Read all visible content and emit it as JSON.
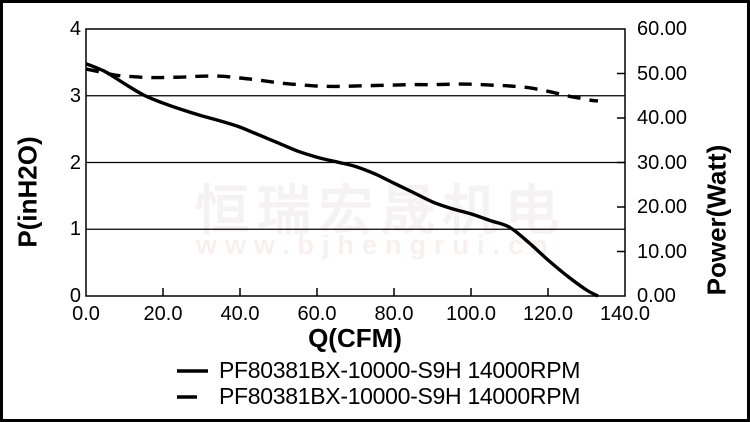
{
  "chart_data": {
    "type": "line",
    "xlabel": "Q(CFM)",
    "ylabel_left": "P(inH2O)",
    "ylabel_right": "Power(Watt)",
    "xlim": [
      0,
      140
    ],
    "ylim_left": [
      0,
      4
    ],
    "ylim_right": [
      0,
      60
    ],
    "grid": "horizontal-only",
    "gridlines_left_values": [
      1,
      2,
      3
    ],
    "x_ticks": [
      {
        "value": 0,
        "label": "0.0"
      },
      {
        "value": 20,
        "label": "20.0"
      },
      {
        "value": 40,
        "label": "40.0"
      },
      {
        "value": 60,
        "label": "60.0"
      },
      {
        "value": 80,
        "label": "80.0"
      },
      {
        "value": 100,
        "label": "100.0"
      },
      {
        "value": 120,
        "label": "120.0"
      },
      {
        "value": 140,
        "label": "140.0"
      }
    ],
    "y_left_ticks": [
      {
        "value": 0,
        "label": "0"
      },
      {
        "value": 1,
        "label": "1"
      },
      {
        "value": 2,
        "label": "2"
      },
      {
        "value": 3,
        "label": "3"
      },
      {
        "value": 4,
        "label": "4"
      }
    ],
    "y_right_ticks": [
      {
        "value": 0,
        "label": "0.00"
      },
      {
        "value": 10,
        "label": "10.00"
      },
      {
        "value": 20,
        "label": "20.00"
      },
      {
        "value": 30,
        "label": "30.00"
      },
      {
        "value": 40,
        "label": "40.00"
      },
      {
        "value": 50,
        "label": "50.00"
      },
      {
        "value": 60,
        "label": "60.00"
      }
    ],
    "legend_position": "bottom",
    "series": [
      {
        "name": "PF80381BX-10000-S9H 14000RPM",
        "style": "solid",
        "axis": "left",
        "color": "#000000",
        "points": [
          [
            0,
            3.48
          ],
          [
            5,
            3.36
          ],
          [
            10,
            3.18
          ],
          [
            15,
            3.01
          ],
          [
            20,
            2.89
          ],
          [
            25,
            2.79
          ],
          [
            30,
            2.7
          ],
          [
            35,
            2.62
          ],
          [
            40,
            2.53
          ],
          [
            45,
            2.41
          ],
          [
            50,
            2.29
          ],
          [
            55,
            2.17
          ],
          [
            60,
            2.08
          ],
          [
            65,
            2.01
          ],
          [
            70,
            1.94
          ],
          [
            75,
            1.83
          ],
          [
            80,
            1.69
          ],
          [
            85,
            1.55
          ],
          [
            90,
            1.41
          ],
          [
            95,
            1.31
          ],
          [
            100,
            1.23
          ],
          [
            105,
            1.13
          ],
          [
            110,
            1.03
          ],
          [
            115,
            0.8
          ],
          [
            120,
            0.54
          ],
          [
            125,
            0.3
          ],
          [
            130,
            0.09
          ],
          [
            133,
            0.0
          ]
        ]
      },
      {
        "name": "PF80381BX-10000-S9H 14000RPM",
        "style": "dashed",
        "axis": "right",
        "color": "#000000",
        "points": [
          [
            0,
            51.0
          ],
          [
            4,
            50.3
          ],
          [
            8,
            49.6
          ],
          [
            12,
            49.3
          ],
          [
            16,
            49.1
          ],
          [
            20,
            49.1
          ],
          [
            25,
            49.2
          ],
          [
            30,
            49.4
          ],
          [
            35,
            49.4
          ],
          [
            40,
            49.0
          ],
          [
            45,
            48.5
          ],
          [
            50,
            47.9
          ],
          [
            55,
            47.5
          ],
          [
            60,
            47.2
          ],
          [
            65,
            47.1
          ],
          [
            70,
            47.2
          ],
          [
            75,
            47.3
          ],
          [
            80,
            47.4
          ],
          [
            85,
            47.5
          ],
          [
            90,
            47.5
          ],
          [
            95,
            47.6
          ],
          [
            100,
            47.6
          ],
          [
            105,
            47.4
          ],
          [
            110,
            47.2
          ],
          [
            115,
            46.8
          ],
          [
            120,
            46.0
          ],
          [
            125,
            45.0
          ],
          [
            128,
            44.5
          ],
          [
            131,
            44.0
          ],
          [
            133,
            43.8
          ]
        ]
      }
    ]
  },
  "legend": [
    {
      "label": "PF80381BX-10000-S9H 14000RPM",
      "sample": "solid-line"
    },
    {
      "label": "PF80381BX-10000-S9H 14000RPM",
      "sample": "dash-line"
    }
  ],
  "watermark": {
    "line1": "恒瑞宏晟机电",
    "line2": "www.bjhengrui.cn"
  },
  "colors": {
    "curve": "#000000",
    "frame": "#000000",
    "watermark_cn": "#f4f2f2",
    "watermark_url": "#f8f0f0"
  }
}
